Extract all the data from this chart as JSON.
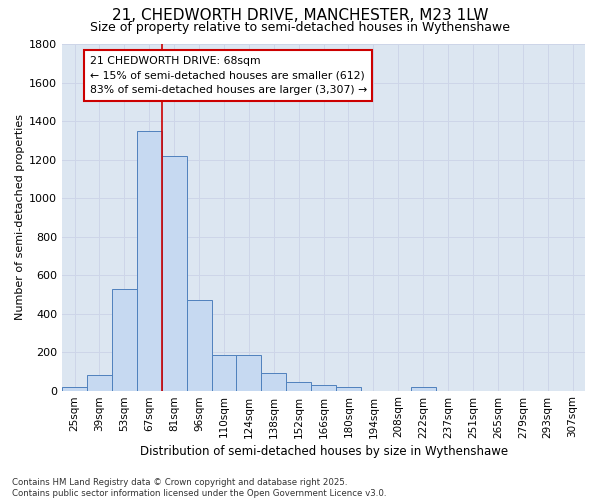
{
  "title": "21, CHEDWORTH DRIVE, MANCHESTER, M23 1LW",
  "subtitle": "Size of property relative to semi-detached houses in Wythenshawe",
  "xlabel": "Distribution of semi-detached houses by size in Wythenshawe",
  "ylabel": "Number of semi-detached properties",
  "bin_labels": [
    "25sqm",
    "39sqm",
    "53sqm",
    "67sqm",
    "81sqm",
    "96sqm",
    "110sqm",
    "124sqm",
    "138sqm",
    "152sqm",
    "166sqm",
    "180sqm",
    "194sqm",
    "208sqm",
    "222sqm",
    "237sqm",
    "251sqm",
    "265sqm",
    "279sqm",
    "293sqm",
    "307sqm"
  ],
  "bar_heights": [
    20,
    80,
    530,
    1350,
    1220,
    470,
    185,
    185,
    90,
    45,
    30,
    20,
    0,
    0,
    20,
    0,
    0,
    0,
    0,
    0,
    0
  ],
  "bar_color": "#c6d9f1",
  "bar_edge_color": "#4f81bd",
  "grid_color": "#cdd5e8",
  "bg_color": "#dce6f1",
  "vline_color": "#cc0000",
  "vline_x_index": 3,
  "ylim": [
    0,
    1800
  ],
  "yticks": [
    0,
    200,
    400,
    600,
    800,
    1000,
    1200,
    1400,
    1600,
    1800
  ],
  "annotation_title": "21 CHEDWORTH DRIVE: 68sqm",
  "annotation_line1": "← 15% of semi-detached houses are smaller (612)",
  "annotation_line2": "83% of semi-detached houses are larger (3,307) →",
  "annotation_box_color": "#ffffff",
  "annotation_border_color": "#cc0000",
  "footnote_line1": "Contains HM Land Registry data © Crown copyright and database right 2025.",
  "footnote_line2": "Contains public sector information licensed under the Open Government Licence v3.0."
}
